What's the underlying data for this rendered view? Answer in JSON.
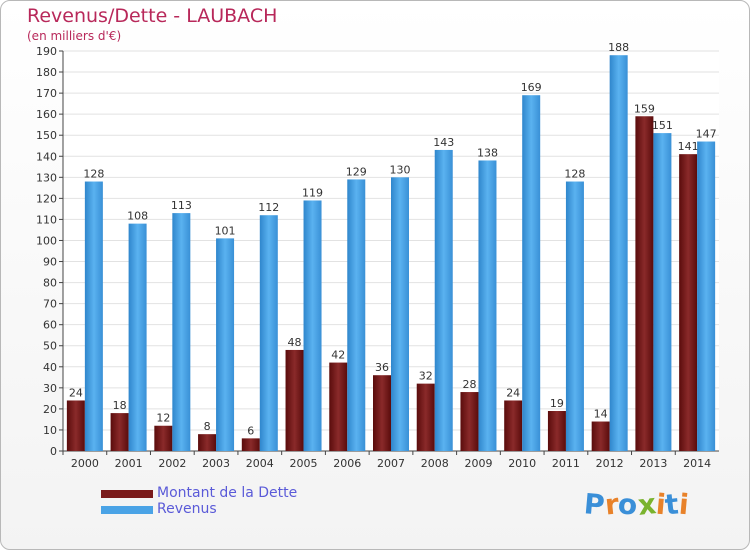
{
  "chart_data": {
    "type": "bar",
    "title": "Revenus/Dette - LAUBACH",
    "subtitle": "(en milliers d'€)",
    "categories": [
      "2000",
      "2001",
      "2002",
      "2003",
      "2004",
      "2005",
      "2006",
      "2007",
      "2008",
      "2009",
      "2010",
      "2011",
      "2012",
      "2013",
      "2014"
    ],
    "series": [
      {
        "name": "Montant de la Dette",
        "values": [
          24,
          18,
          12,
          8,
          6,
          48,
          42,
          36,
          32,
          28,
          24,
          19,
          14,
          159,
          141
        ],
        "labels": [
          "24",
          "18",
          "12",
          "8",
          "6",
          "48",
          "42",
          "36",
          "32",
          "28",
          "24",
          "19",
          "14",
          "159",
          "141"
        ],
        "color": "#7a1a1a"
      },
      {
        "name": "Revenus",
        "values": [
          128,
          108,
          113,
          101,
          112,
          119,
          129,
          130,
          143,
          138,
          169,
          128,
          188,
          151,
          147
        ],
        "labels": [
          "128",
          "108",
          "113",
          "101",
          "112",
          "119",
          "129",
          "130",
          "143",
          "138",
          "169",
          "128",
          "188",
          "151",
          "147"
        ],
        "color": "#4aa3e6"
      }
    ],
    "ylim": [
      0,
      190
    ],
    "yticks": [
      0,
      10,
      20,
      30,
      40,
      50,
      60,
      70,
      80,
      90,
      100,
      110,
      120,
      130,
      140,
      150,
      160,
      170,
      180,
      190
    ],
    "grid": true,
    "legend_position": "bottom-left"
  },
  "logo": {
    "text": "Proxiti",
    "colors": [
      "#3a8fd8",
      "#e8822a",
      "#3a8fd8",
      "#7ab32e",
      "#e8822a",
      "#3a8fd8",
      "#e8822a"
    ]
  }
}
